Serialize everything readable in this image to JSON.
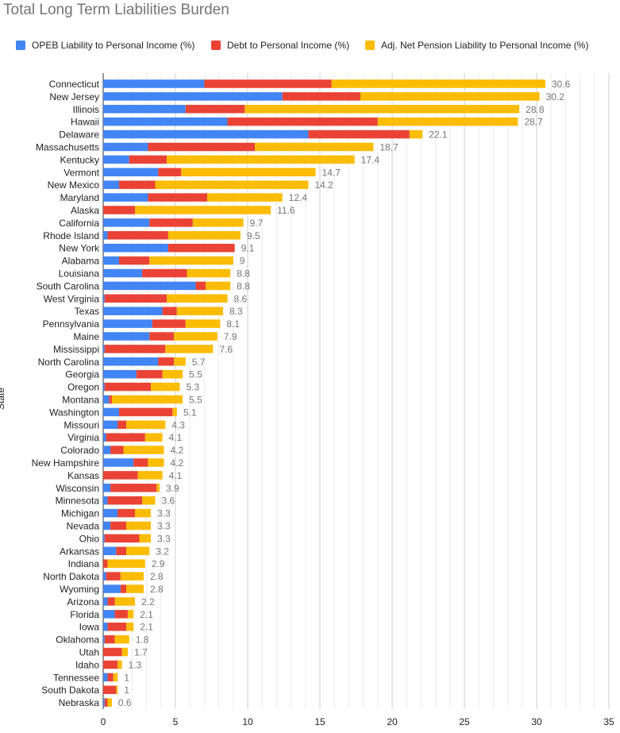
{
  "chart_data": {
    "type": "bar",
    "orientation": "horizontal",
    "stacked": true,
    "title": "Total Long Term Liabilities Burden",
    "xlabel": "",
    "ylabel": "State",
    "xlim": [
      0,
      35
    ],
    "xticks": [
      "0",
      "5",
      "10",
      "15",
      "20",
      "25",
      "30",
      "35"
    ],
    "grid": true,
    "legend_position": "top",
    "categories": [
      "Connecticut",
      "New Jersey",
      "Illinois",
      "Hawaii",
      "Delaware",
      "Massachusetts",
      "Kentucky",
      "Vermont",
      "New Mexico",
      "Maryland",
      "Alaska",
      "California",
      "Rhode Island",
      "New York",
      "Alabama",
      "Louisiana",
      "South Carolina",
      "West Virginia",
      "Texas",
      "Pennsylvania",
      "Maine",
      "Mississippi",
      "North Carolina",
      "Georgia",
      "Oregon",
      "Montana",
      "Washington",
      "Missouri",
      "Virginia",
      "Colorado",
      "New Hampshire",
      "Kansas",
      "Wisconsin",
      "Minnesota",
      "Michigan",
      "Nevada",
      "Ohio",
      "Arkansas",
      "Indiana",
      "North Dakota",
      "Wyoming",
      "Arizona",
      "Florida",
      "Iowa",
      "Oklahoma",
      "Utah",
      "Idaho",
      "Tennessee",
      "South Dakota",
      "Nebraska"
    ],
    "series": [
      {
        "name": "OPEB Liability to Personal Income (%)",
        "color": "#4285f4",
        "values": [
          7.0,
          12.4,
          5.7,
          8.6,
          14.2,
          3.1,
          1.8,
          3.8,
          1.1,
          3.1,
          0,
          3.2,
          0.3,
          4.5,
          1.1,
          2.7,
          6.4,
          0.1,
          4.1,
          3.4,
          3.2,
          0.1,
          3.8,
          2.3,
          0.1,
          0.4,
          1.1,
          1.0,
          0.2,
          0.5,
          2.1,
          0,
          0.5,
          0.3,
          1.0,
          0.5,
          0.1,
          0.9,
          0,
          0.2,
          1.2,
          0.3,
          0.8,
          0.3,
          0.1,
          0,
          0,
          0.3,
          0,
          0.1
        ]
      },
      {
        "name": "Debt to Personal Income (%)",
        "color": "#ea4335",
        "values": [
          8.8,
          5.4,
          4.1,
          10.4,
          7.0,
          7.4,
          2.6,
          1.6,
          2.5,
          4.1,
          2.2,
          3.0,
          4.2,
          4.6,
          2.1,
          3.1,
          0.7,
          4.3,
          1.0,
          2.3,
          1.7,
          4.2,
          1.1,
          1.8,
          3.2,
          0.2,
          3.7,
          0.6,
          2.7,
          0.9,
          1.0,
          2.4,
          3.2,
          2.4,
          1.2,
          1.1,
          2.4,
          0.7,
          0.3,
          1.0,
          0.4,
          0.5,
          0.9,
          1.3,
          0.7,
          1.3,
          1.0,
          0.4,
          0.9,
          0.2
        ]
      },
      {
        "name": "Adj. Net Pension Liability to Personal Income (%)",
        "color": "#fbbc04",
        "values": [
          14.8,
          12.4,
          19.0,
          9.7,
          0.9,
          8.2,
          13.0,
          9.3,
          10.6,
          5.2,
          9.4,
          3.5,
          5.0,
          0,
          5.8,
          3.0,
          1.7,
          4.2,
          3.2,
          2.4,
          3.0,
          3.3,
          0.8,
          1.4,
          2.0,
          4.9,
          0.3,
          2.7,
          1.2,
          2.8,
          1.1,
          1.7,
          0.2,
          0.9,
          1.1,
          1.7,
          0.8,
          1.6,
          2.6,
          1.6,
          1.2,
          1.4,
          0.4,
          0.5,
          1.0,
          0.4,
          0.3,
          0.3,
          0.1,
          0.3
        ]
      }
    ],
    "totals": [
      30.6,
      30.2,
      28.8,
      28.7,
      22.1,
      18.7,
      17.4,
      14.7,
      14.2,
      12.4,
      11.6,
      9.7,
      9.5,
      9.1,
      9,
      8.8,
      8.8,
      8.6,
      8.3,
      8.1,
      7.9,
      7.6,
      5.7,
      5.5,
      5.3,
      5.5,
      5.1,
      4.3,
      4.1,
      4.2,
      4.2,
      4.1,
      3.9,
      3.6,
      3.3,
      3.3,
      3.3,
      3.2,
      2.9,
      2.8,
      2.8,
      2.2,
      2.1,
      2.1,
      1.8,
      1.7,
      1.3,
      1,
      1,
      0.6
    ]
  }
}
